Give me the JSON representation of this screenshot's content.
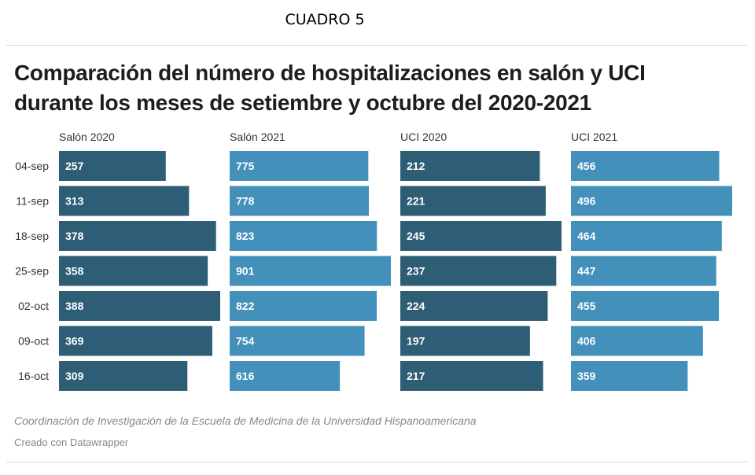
{
  "header": {
    "label": "CUADRO 5"
  },
  "chart_data": {
    "type": "bar",
    "title": "Comparación del número de hospitalizaciones en salón y UCI durante los meses de setiembre y octubre del 2020-2021",
    "categories": [
      "04-sep",
      "11-sep",
      "18-sep",
      "25-sep",
      "02-oct",
      "09-oct",
      "16-oct"
    ],
    "series": [
      {
        "name": "Salón 2020",
        "values": [
          257,
          313,
          378,
          358,
          388,
          369,
          309
        ],
        "color": "#2e5e75"
      },
      {
        "name": "Salón 2021",
        "values": [
          775,
          778,
          823,
          901,
          822,
          754,
          616
        ],
        "color": "#4390bb"
      },
      {
        "name": "UCI 2020",
        "values": [
          212,
          221,
          245,
          237,
          224,
          197,
          217
        ],
        "color": "#2e5e75"
      },
      {
        "name": "UCI 2021",
        "values": [
          456,
          496,
          464,
          447,
          455,
          406,
          359
        ],
        "color": "#4390bb"
      }
    ],
    "orientation": "horizontal",
    "layout": "small-multiples",
    "value_labels": "inside-left",
    "grid": false,
    "legend": "none"
  },
  "footer": {
    "source": "Coordinación de Investigación de la Escuela de Medicina de la Universidad Hispanoamericana",
    "credit": "Creado con Datawrapper"
  }
}
